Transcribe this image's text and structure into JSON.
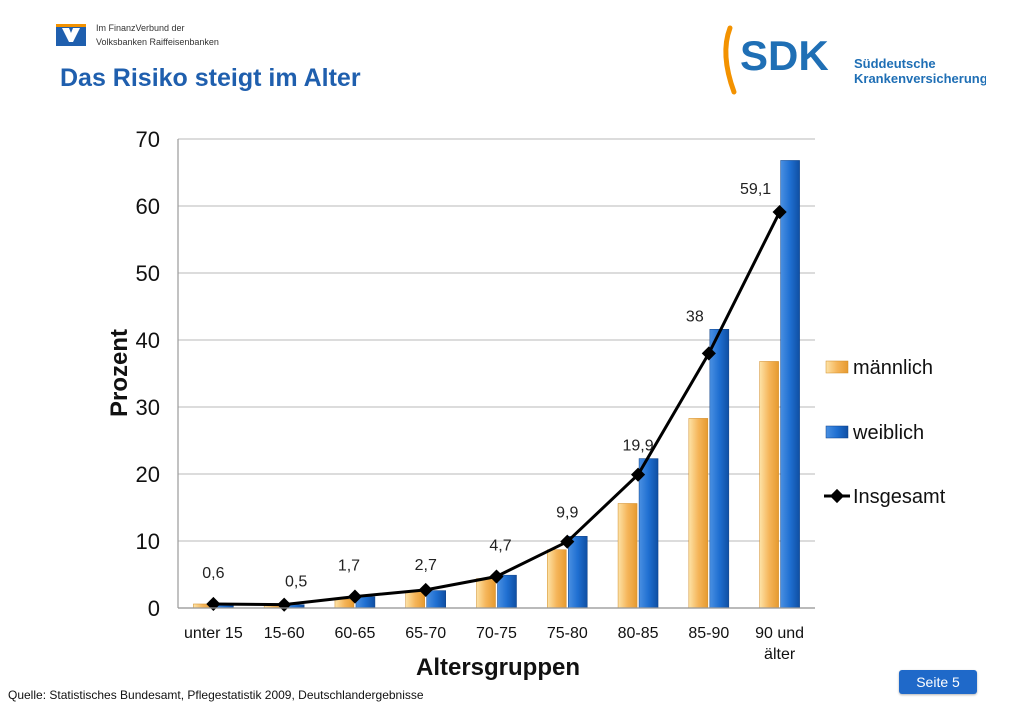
{
  "header": {
    "vb_line1": "Im FinanzVerbund der",
    "vb_line2": "Volksbanken Raiffeisenbanken",
    "title": "Das Risiko steigt im Alter",
    "sdk_abbr": "SDK",
    "sdk_line1": "Süddeutsche",
    "sdk_line2": "Krankenversicherung"
  },
  "footer": {
    "source": "Quelle: Statistisches Bundesamt, Pflegestatistik 2009, Deutschlandergebnisse",
    "page_label": "Seite 5"
  },
  "colors": {
    "title_blue": "#1f5fae",
    "bar_male": "#f5b55a",
    "bar_female": "#1f6fd1",
    "line_total": "#000000"
  },
  "chart_data": {
    "type": "bar",
    "xlabel": "Altersgruppen",
    "ylabel": "Prozent",
    "ylim": [
      0,
      70
    ],
    "yticks": [
      "0",
      "10",
      "20",
      "30",
      "40",
      "50",
      "60",
      "70"
    ],
    "grid": true,
    "legend_position": "right",
    "categories": [
      "unter 15",
      "15-60",
      "60-65",
      "65-70",
      "70-75",
      "75-80",
      "80-85",
      "85-90",
      "90 und älter"
    ],
    "series": [
      {
        "name": "männlich",
        "type": "bar",
        "values": [
          0.6,
          0.5,
          1.3,
          2.5,
          4.4,
          8.7,
          15.6,
          28.3,
          36.8
        ]
      },
      {
        "name": "weiblich",
        "type": "bar",
        "values": [
          0.6,
          0.5,
          1.7,
          2.6,
          4.9,
          10.7,
          22.3,
          41.6,
          66.8
        ]
      },
      {
        "name": "Insgesamt",
        "type": "line",
        "values": [
          0.6,
          0.5,
          1.7,
          2.7,
          4.7,
          9.9,
          19.9,
          38,
          59.1
        ],
        "labels": [
          "0,6",
          "0,5",
          "1,7",
          "2,7",
          "4,7",
          "9,9",
          "19,9",
          "38",
          "59,1"
        ]
      }
    ]
  }
}
